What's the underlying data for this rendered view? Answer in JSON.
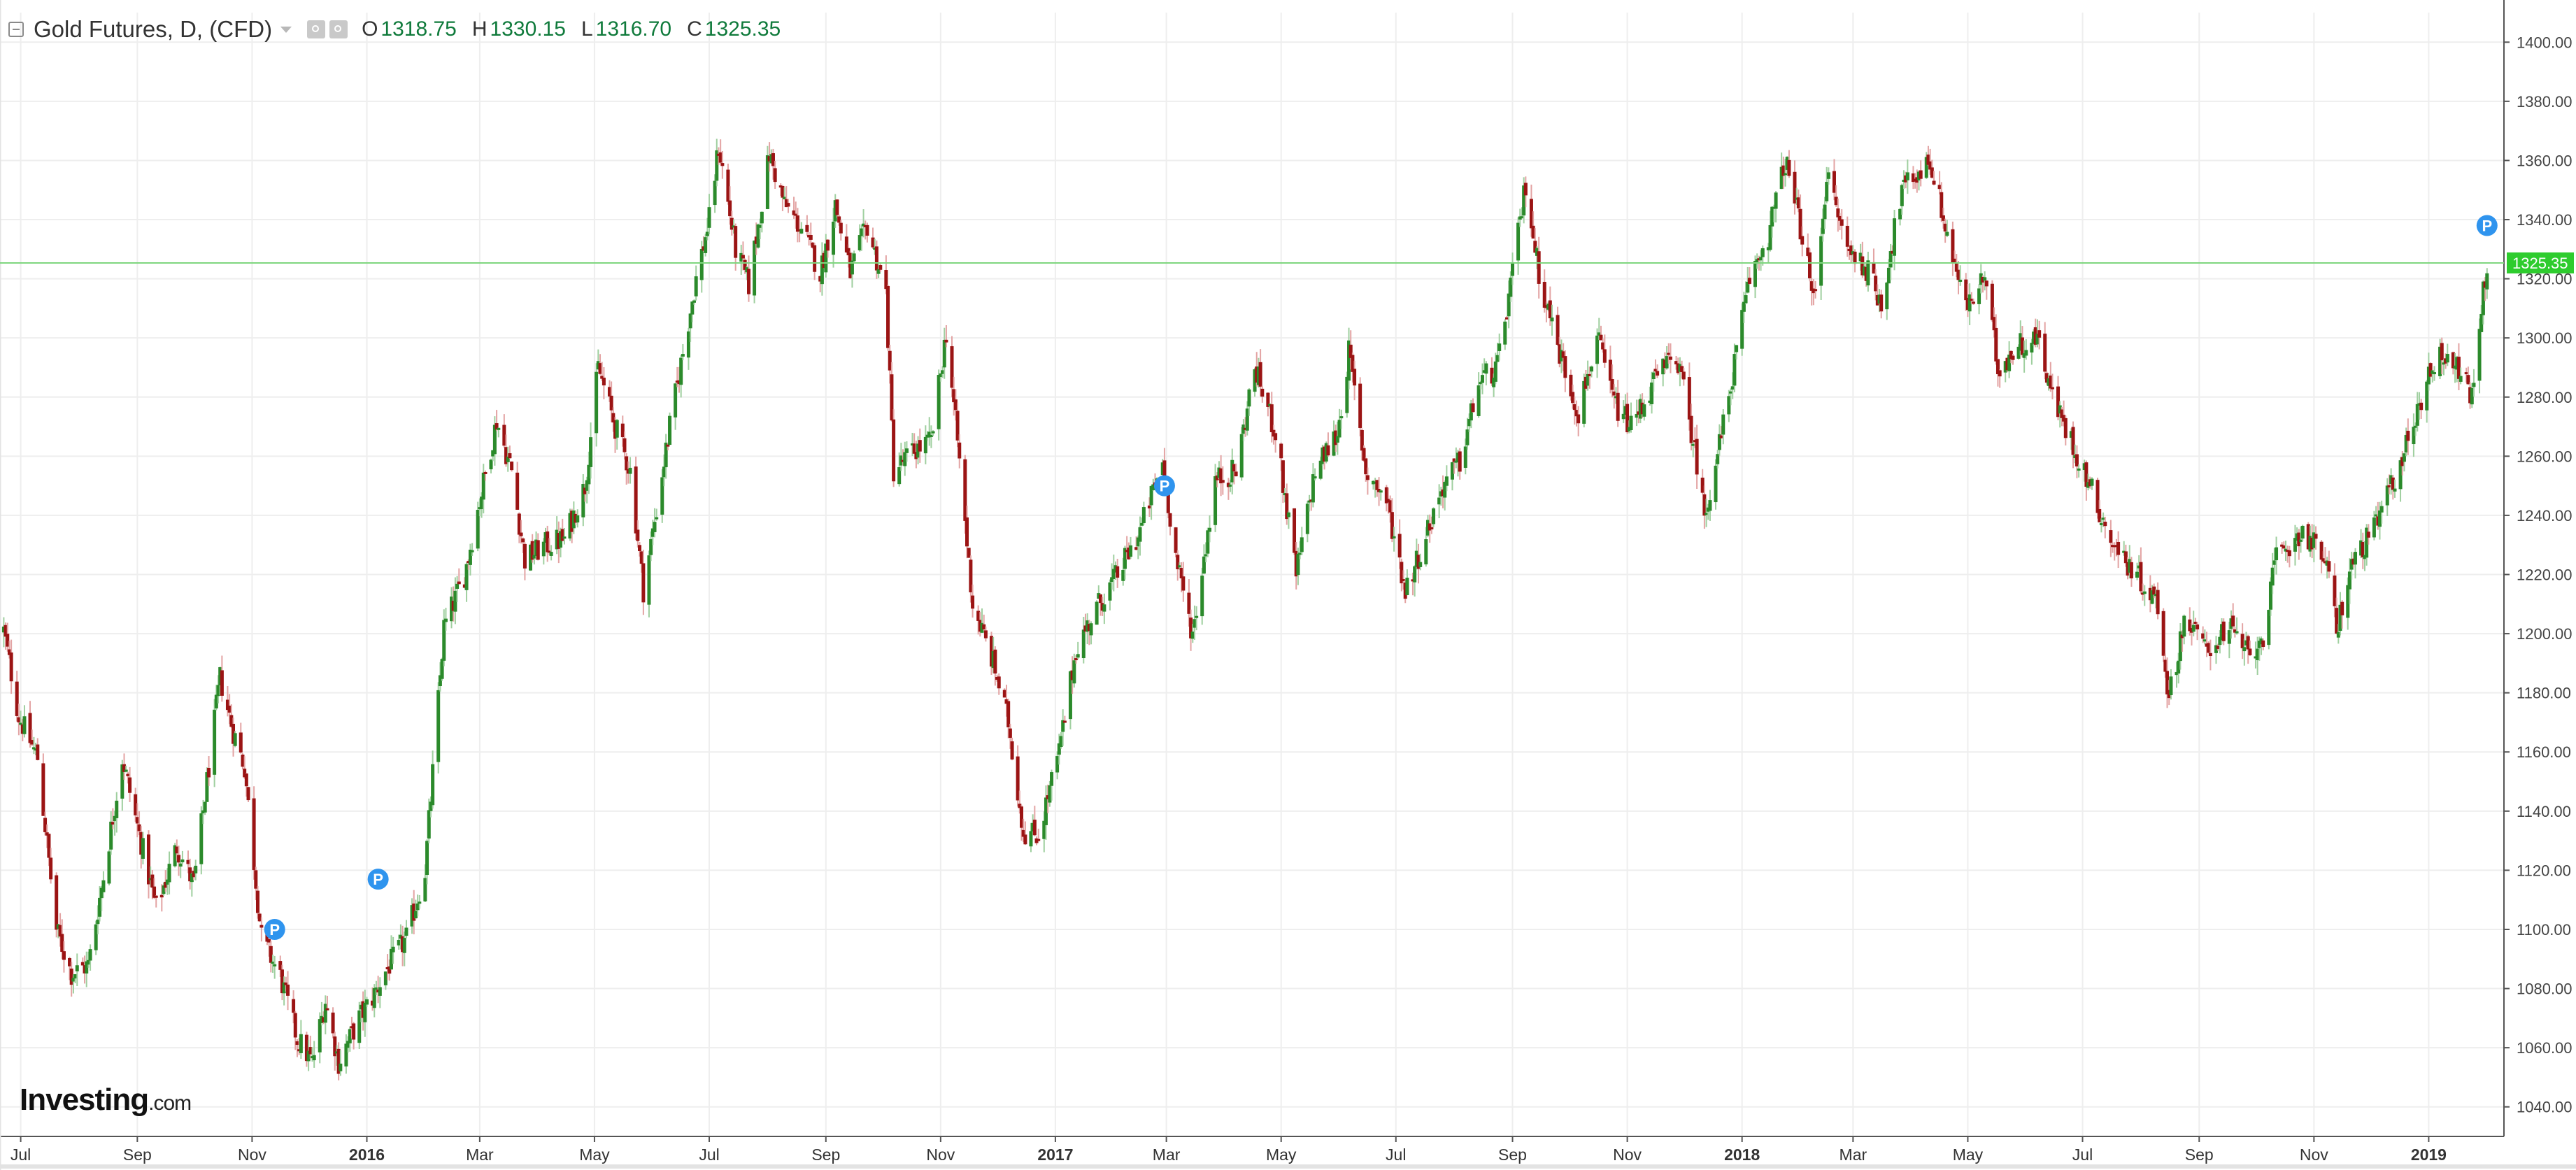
{
  "header": {
    "title": "Gold Futures, D, (CFD)",
    "ohlc": [
      {
        "key": "O",
        "value": "1318.75"
      },
      {
        "key": "H",
        "value": "1330.15"
      },
      {
        "key": "L",
        "value": "1316.70"
      },
      {
        "key": "C",
        "value": "1325.35"
      }
    ]
  },
  "logo": {
    "brand": "Investing",
    "suffix": ".com"
  },
  "colors": {
    "up": "#2b8a2b",
    "down": "#9b1414",
    "grid": "#eeeeee",
    "price_line": "#7fd67f",
    "price_tag": "#2ecc2e",
    "marker": "#2f94ee"
  },
  "chart_data": {
    "type": "candlestick",
    "title": "",
    "xlabel": "",
    "ylabel": "",
    "ylim": [
      1030,
      1410
    ],
    "xlim": [
      "2015-06-20",
      "2019-02-10"
    ],
    "y_ticks": [
      "1040.00",
      "1060.00",
      "1080.00",
      "1100.00",
      "1120.00",
      "1140.00",
      "1160.00",
      "1180.00",
      "1200.00",
      "1220.00",
      "1240.00",
      "1260.00",
      "1280.00",
      "1300.00",
      "1320.00",
      "1340.00",
      "1360.00",
      "1380.00",
      "1400.00"
    ],
    "x_ticks": [
      {
        "label": "Jul",
        "date": "2015-07-01"
      },
      {
        "label": "Sep",
        "date": "2015-09-01"
      },
      {
        "label": "Nov",
        "date": "2015-11-01"
      },
      {
        "label": "2016",
        "date": "2016-01-01",
        "bold": true
      },
      {
        "label": "Mar",
        "date": "2016-03-01"
      },
      {
        "label": "May",
        "date": "2016-05-01"
      },
      {
        "label": "Jul",
        "date": "2016-07-01"
      },
      {
        "label": "Sep",
        "date": "2016-09-01"
      },
      {
        "label": "Nov",
        "date": "2016-11-01"
      },
      {
        "label": "2017",
        "date": "2017-01-01",
        "bold": true
      },
      {
        "label": "Mar",
        "date": "2017-03-01"
      },
      {
        "label": "May",
        "date": "2017-05-01"
      },
      {
        "label": "Jul",
        "date": "2017-07-01"
      },
      {
        "label": "Sep",
        "date": "2017-09-01"
      },
      {
        "label": "Nov",
        "date": "2017-11-01"
      },
      {
        "label": "2018",
        "date": "2018-01-01",
        "bold": true
      },
      {
        "label": "Mar",
        "date": "2018-03-01"
      },
      {
        "label": "May",
        "date": "2018-05-01"
      },
      {
        "label": "Jul",
        "date": "2018-07-01"
      },
      {
        "label": "Sep",
        "date": "2018-09-01"
      },
      {
        "label": "Nov",
        "date": "2018-11-01"
      },
      {
        "label": "2019",
        "date": "2019-01-01",
        "bold": true
      }
    ],
    "close_path": [
      [
        "2015-06-22",
        1201
      ],
      [
        "2015-06-30",
        1172
      ],
      [
        "2015-07-10",
        1158
      ],
      [
        "2015-07-20",
        1100
      ],
      [
        "2015-07-28",
        1085
      ],
      [
        "2015-08-06",
        1088
      ],
      [
        "2015-08-14",
        1118
      ],
      [
        "2015-08-24",
        1158
      ],
      [
        "2015-09-01",
        1135
      ],
      [
        "2015-09-11",
        1107
      ],
      [
        "2015-09-22",
        1128
      ],
      [
        "2015-10-01",
        1115
      ],
      [
        "2015-10-08",
        1150
      ],
      [
        "2015-10-15",
        1185
      ],
      [
        "2015-10-22",
        1167
      ],
      [
        "2015-10-28",
        1155
      ],
      [
        "2015-11-06",
        1097
      ],
      [
        "2015-11-16",
        1084
      ],
      [
        "2015-11-25",
        1063
      ],
      [
        "2015-12-03",
        1055
      ],
      [
        "2015-12-10",
        1076
      ],
      [
        "2015-12-17",
        1055
      ],
      [
        "2015-12-28",
        1070
      ],
      [
        "2016-01-04",
        1077
      ],
      [
        "2016-01-12",
        1087
      ],
      [
        "2016-01-22",
        1097
      ],
      [
        "2016-02-01",
        1120
      ],
      [
        "2016-02-11",
        1202
      ],
      [
        "2016-02-22",
        1220
      ],
      [
        "2016-03-01",
        1245
      ],
      [
        "2016-03-10",
        1272
      ],
      [
        "2016-03-18",
        1255
      ],
      [
        "2016-03-25",
        1225
      ],
      [
        "2016-04-05",
        1230
      ],
      [
        "2016-04-15",
        1232
      ],
      [
        "2016-04-26",
        1250
      ],
      [
        "2016-05-03",
        1290
      ],
      [
        "2016-05-12",
        1270
      ],
      [
        "2016-05-20",
        1255
      ],
      [
        "2016-05-27",
        1215
      ],
      [
        "2016-06-03",
        1242
      ],
      [
        "2016-06-10",
        1270
      ],
      [
        "2016-06-17",
        1295
      ],
      [
        "2016-06-24",
        1320
      ],
      [
        "2016-07-01",
        1340
      ],
      [
        "2016-07-06",
        1365
      ],
      [
        "2016-07-15",
        1330
      ],
      [
        "2016-07-22",
        1318
      ],
      [
        "2016-08-02",
        1362
      ],
      [
        "2016-08-10",
        1345
      ],
      [
        "2016-08-19",
        1337
      ],
      [
        "2016-08-29",
        1322
      ],
      [
        "2016-09-06",
        1345
      ],
      [
        "2016-09-14",
        1322
      ],
      [
        "2016-09-23",
        1338
      ],
      [
        "2016-10-03",
        1315
      ],
      [
        "2016-10-07",
        1255
      ],
      [
        "2016-10-18",
        1262
      ],
      [
        "2016-10-27",
        1265
      ],
      [
        "2016-11-04",
        1302
      ],
      [
        "2016-11-10",
        1265
      ],
      [
        "2016-11-18",
        1210
      ],
      [
        "2016-11-29",
        1190
      ],
      [
        "2016-12-07",
        1170
      ],
      [
        "2016-12-15",
        1133
      ],
      [
        "2016-12-23",
        1132
      ],
      [
        "2017-01-03",
        1160
      ],
      [
        "2017-01-12",
        1195
      ],
      [
        "2017-01-24",
        1210
      ],
      [
        "2017-02-03",
        1220
      ],
      [
        "2017-02-14",
        1233
      ],
      [
        "2017-02-27",
        1258
      ],
      [
        "2017-03-07",
        1222
      ],
      [
        "2017-03-15",
        1200
      ],
      [
        "2017-03-27",
        1252
      ],
      [
        "2017-04-07",
        1255
      ],
      [
        "2017-04-17",
        1290
      ],
      [
        "2017-04-28",
        1268
      ],
      [
        "2017-05-09",
        1220
      ],
      [
        "2017-05-19",
        1255
      ],
      [
        "2017-05-31",
        1268
      ],
      [
        "2017-06-06",
        1295
      ],
      [
        "2017-06-15",
        1255
      ],
      [
        "2017-06-26",
        1245
      ],
      [
        "2017-07-06",
        1215
      ],
      [
        "2017-07-14",
        1228
      ],
      [
        "2017-07-26",
        1250
      ],
      [
        "2017-08-04",
        1258
      ],
      [
        "2017-08-14",
        1285
      ],
      [
        "2017-08-24",
        1290
      ],
      [
        "2017-09-01",
        1322
      ],
      [
        "2017-09-08",
        1352
      ],
      [
        "2017-09-15",
        1322
      ],
      [
        "2017-09-26",
        1295
      ],
      [
        "2017-10-06",
        1275
      ],
      [
        "2017-10-16",
        1300
      ],
      [
        "2017-10-25",
        1278
      ],
      [
        "2017-11-03",
        1270
      ],
      [
        "2017-11-15",
        1285
      ],
      [
        "2017-11-27",
        1295
      ],
      [
        "2017-12-07",
        1262
      ],
      [
        "2017-12-12",
        1240
      ],
      [
        "2017-12-22",
        1270
      ],
      [
        "2018-01-05",
        1320
      ],
      [
        "2018-01-15",
        1335
      ],
      [
        "2018-01-24",
        1360
      ],
      [
        "2018-02-02",
        1335
      ],
      [
        "2018-02-08",
        1312
      ],
      [
        "2018-02-15",
        1355
      ],
      [
        "2018-02-26",
        1330
      ],
      [
        "2018-03-07",
        1325
      ],
      [
        "2018-03-16",
        1312
      ],
      [
        "2018-03-27",
        1350
      ],
      [
        "2018-04-11",
        1360
      ],
      [
        "2018-04-20",
        1335
      ],
      [
        "2018-04-30",
        1310
      ],
      [
        "2018-05-10",
        1320
      ],
      [
        "2018-05-17",
        1290
      ],
      [
        "2018-05-29",
        1298
      ],
      [
        "2018-06-08",
        1300
      ],
      [
        "2018-06-15",
        1280
      ],
      [
        "2018-06-25",
        1265
      ],
      [
        "2018-07-05",
        1250
      ],
      [
        "2018-07-17",
        1230
      ],
      [
        "2018-07-30",
        1220
      ],
      [
        "2018-08-10",
        1210
      ],
      [
        "2018-08-16",
        1178
      ],
      [
        "2018-08-24",
        1205
      ],
      [
        "2018-09-05",
        1195
      ],
      [
        "2018-09-17",
        1202
      ],
      [
        "2018-09-28",
        1192
      ],
      [
        "2018-10-05",
        1200
      ],
      [
        "2018-10-12",
        1225
      ],
      [
        "2018-10-26",
        1235
      ],
      [
        "2018-11-07",
        1225
      ],
      [
        "2018-11-13",
        1202
      ],
      [
        "2018-11-22",
        1225
      ],
      [
        "2018-12-03",
        1235
      ],
      [
        "2018-12-12",
        1250
      ],
      [
        "2018-12-21",
        1265
      ],
      [
        "2019-01-02",
        1290
      ],
      [
        "2019-01-10",
        1295
      ],
      [
        "2019-01-18",
        1288
      ],
      [
        "2019-01-24",
        1280
      ],
      [
        "2019-01-29",
        1310
      ],
      [
        "2019-02-01",
        1325
      ]
    ],
    "markers": [
      {
        "label": "P",
        "date": "2015-11-13",
        "price": 1100
      },
      {
        "label": "P",
        "date": "2016-01-07",
        "price": 1117
      },
      {
        "label": "P",
        "date": "2017-02-28",
        "price": 1250
      },
      {
        "label": "P",
        "date": "2019-02-01",
        "price": 1338
      }
    ],
    "last_price": {
      "label": "1325.35",
      "value": 1325.35
    }
  }
}
